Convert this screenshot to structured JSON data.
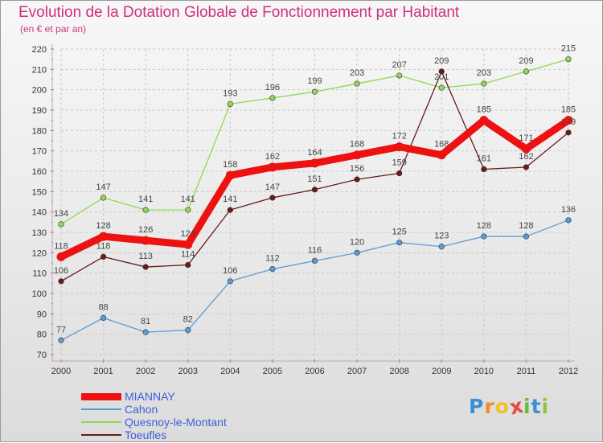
{
  "title": "Evolution de la Dotation Globale de Fonctionnement par Habitant",
  "subtitle": "(en € et par an)",
  "logo": {
    "letters": [
      "P",
      "r",
      "o",
      "x",
      "i",
      "t",
      "i"
    ],
    "colors": [
      "#3c8fd6",
      "#f28c28",
      "#f5c021",
      "#e84d3c",
      "#6cb840",
      "#3c8fd6",
      "#8dc63f"
    ]
  },
  "chart_data": {
    "type": "line",
    "title": "Evolution de la Dotation Globale de Fonctionnement par Habitant",
    "subtitle": "(en € et par an)",
    "x": [
      "2000",
      "2001",
      "2002",
      "2003",
      "2004",
      "2005",
      "2006",
      "2007",
      "2008",
      "2009",
      "2010",
      "2011",
      "2012"
    ],
    "ylim": [
      70,
      220
    ],
    "yticks": [
      70,
      80,
      90,
      100,
      110,
      120,
      130,
      140,
      150,
      160,
      170,
      180,
      190,
      200,
      210,
      220
    ],
    "grid": true,
    "legend_position": "bottom-left",
    "series": [
      {
        "name": "MIANNAY",
        "color": "#ee1111",
        "values": [
          118,
          128,
          126,
          124,
          158,
          162,
          164,
          168,
          172,
          168,
          185,
          171,
          185
        ]
      },
      {
        "name": "Cahon",
        "color": "#5b9bd5",
        "values": [
          77,
          88,
          81,
          82,
          106,
          112,
          116,
          120,
          125,
          123,
          128,
          128,
          136
        ]
      },
      {
        "name": "Quesnoy-le-Montant",
        "color": "#8ed857",
        "values": [
          134,
          147,
          141,
          141,
          193,
          196,
          199,
          203,
          207,
          201,
          203,
          209,
          215
        ]
      },
      {
        "name": "Toeufles",
        "color": "#6b1a1a",
        "values": [
          106,
          118,
          113,
          114,
          141,
          147,
          151,
          156,
          159,
          209,
          161,
          162,
          179
        ]
      }
    ]
  }
}
